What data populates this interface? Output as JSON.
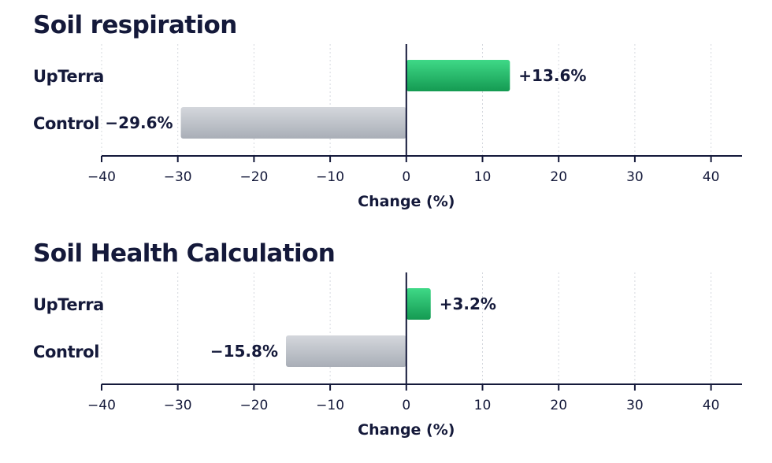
{
  "colors": {
    "positive_bar": "#22b968",
    "negative_bar": "#c2c6cd",
    "axis": "#14193a",
    "grid": "#d5d8de",
    "text": "#14193a"
  },
  "chart_data": [
    {
      "type": "bar",
      "orientation": "horizontal",
      "title": "Soil respiration",
      "categories": [
        "UpTerra",
        "Control"
      ],
      "values": [
        13.6,
        -29.6
      ],
      "value_labels": [
        "+13.6%",
        "−29.6%"
      ],
      "xlabel": "Change (%)",
      "xlim": [
        -40,
        45
      ],
      "xticks": [
        -40,
        -30,
        -20,
        -10,
        0,
        10,
        20,
        30,
        40
      ],
      "xtick_labels": [
        "−40",
        "−30",
        "−20",
        "−10",
        "0",
        "10",
        "20",
        "30",
        "40"
      ],
      "grid": "vertical dotted"
    },
    {
      "type": "bar",
      "orientation": "horizontal",
      "title": "Soil Health Calculation",
      "categories": [
        "UpTerra",
        "Control"
      ],
      "values": [
        3.2,
        -15.8
      ],
      "value_labels": [
        "+3.2%",
        "−15.8%"
      ],
      "xlabel": "Change (%)",
      "xlim": [
        -40,
        45
      ],
      "xticks": [
        -40,
        -30,
        -20,
        -10,
        0,
        10,
        20,
        30,
        40
      ],
      "xtick_labels": [
        "−40",
        "−30",
        "−20",
        "−10",
        "0",
        "10",
        "20",
        "30",
        "40"
      ],
      "grid": "vertical dotted"
    }
  ]
}
